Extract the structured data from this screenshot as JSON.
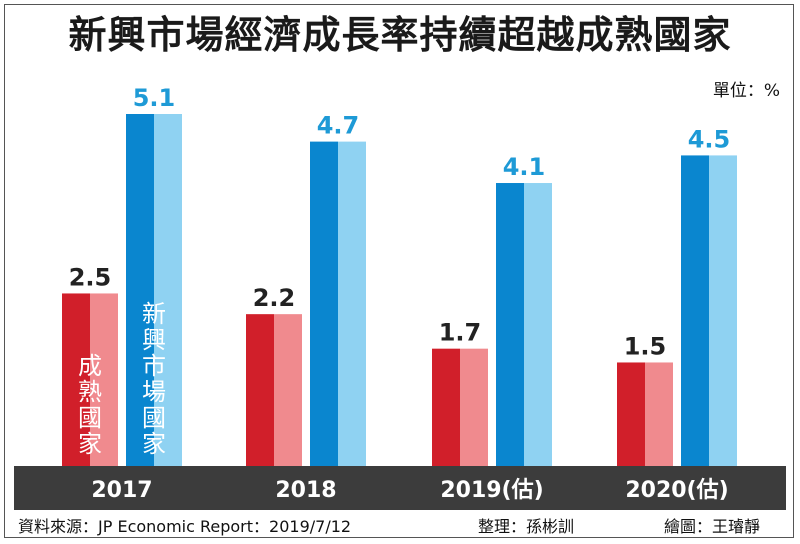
{
  "title": "新興市場經濟成長率持續超越成熟國家",
  "unit_label": "單位：%",
  "chart_data": {
    "type": "bar",
    "categories": [
      "2017",
      "2018",
      "2019(估)",
      "2020(估)"
    ],
    "series": [
      {
        "name": "成熟國家",
        "values": [
          2.5,
          2.2,
          1.7,
          1.5
        ],
        "color": "#e0303a"
      },
      {
        "name": "新興市場國家",
        "values": [
          5.1,
          4.7,
          4.1,
          4.5
        ],
        "color": "#1e9ad6"
      }
    ],
    "ylim": [
      0,
      5.1
    ],
    "legend_placement": "inside-bars",
    "grid": false
  },
  "footer": {
    "source": "資料來源：JP Economic Report：2019/7/12",
    "editor": "整理：孫彬訓",
    "artist": "繪圖：王璿靜"
  },
  "colors": {
    "red_dark": "#d11f2a",
    "red_light": "#f08a8e",
    "blue_dark": "#0a86cf",
    "blue_light": "#8fd2f2",
    "label_red": "#222222",
    "label_blue": "#1e9ad6",
    "axis_band": "#3c3c3c"
  }
}
